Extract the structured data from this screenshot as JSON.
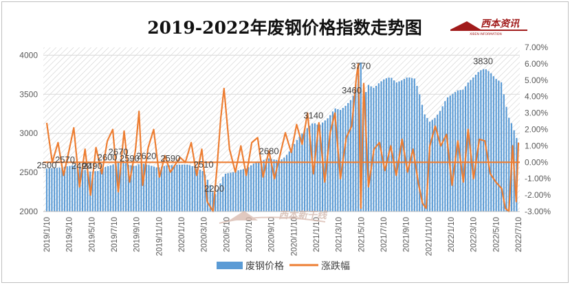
{
  "chart_data": {
    "type": "bar+line",
    "title": "2019-2022年废钢价格指数走势图",
    "logo": {
      "text": "西本资讯",
      "subtext": "XIBEN INFORMATION"
    },
    "watermark": "西本新干线",
    "y_left": {
      "ylim": [
        2000,
        4100
      ],
      "ticks": [
        2000,
        2500,
        3000,
        3500,
        4000
      ]
    },
    "y_right": {
      "ylim": [
        -3.0,
        7.0
      ],
      "ticks": [
        "-3.00%",
        "-2.00%",
        "-1.00%",
        "0.00%",
        "1.00%",
        "2.00%",
        "3.00%",
        "4.00%",
        "5.00%",
        "6.00%",
        "7.00%"
      ]
    },
    "x_ticks": [
      "2019/1/10",
      "2019/3/10",
      "2019/5/10",
      "2019/7/10",
      "2019/9/10",
      "2019/11/10",
      "2020/1/10",
      "2020/3/10",
      "2020/5/10",
      "2020/7/10",
      "2020/9/10",
      "2020/11/10",
      "2021/1/10",
      "2021/3/10",
      "2021/5/10",
      "2021/7/10",
      "2021/9/10",
      "2021/11/10",
      "2022/1/10",
      "2022/3/10",
      "2022/5/10",
      "2022/7/10"
    ],
    "x_range": [
      "2019-01-10",
      "2022-07-26"
    ],
    "series": [
      {
        "name": "废钢价格",
        "type": "bar",
        "color": "#5b9bd5",
        "points": [
          [
            "2019-01-10",
            2550
          ],
          [
            "2019-02-10",
            2560
          ],
          [
            "2019-03-10",
            2580
          ],
          [
            "2019-04-01",
            2600
          ],
          [
            "2019-04-20",
            2540
          ],
          [
            "2019-05-10",
            2510
          ],
          [
            "2019-06-01",
            2520
          ],
          [
            "2019-06-20",
            2570
          ],
          [
            "2019-07-10",
            2600
          ],
          [
            "2019-07-25",
            2640
          ],
          [
            "2019-08-01",
            2670
          ],
          [
            "2019-08-20",
            2600
          ],
          [
            "2019-09-10",
            2580
          ],
          [
            "2019-09-25",
            2620
          ],
          [
            "2019-10-20",
            2590
          ],
          [
            "2019-11-10",
            2560
          ],
          [
            "2019-12-05",
            2590
          ],
          [
            "2020-01-10",
            2600
          ],
          [
            "2020-02-01",
            2600
          ],
          [
            "2020-02-25",
            2560
          ],
          [
            "2020-03-15",
            2510
          ],
          [
            "2020-04-01",
            2350
          ],
          [
            "2020-04-13",
            2200
          ],
          [
            "2020-04-25",
            2300
          ],
          [
            "2020-05-10",
            2480
          ],
          [
            "2020-06-01",
            2500
          ],
          [
            "2020-06-20",
            2530
          ],
          [
            "2020-07-10",
            2550
          ],
          [
            "2020-08-01",
            2620
          ],
          [
            "2020-08-20",
            2650
          ],
          [
            "2020-09-10",
            2680
          ],
          [
            "2020-10-10",
            2650
          ],
          [
            "2020-10-25",
            2700
          ],
          [
            "2020-11-10",
            2800
          ],
          [
            "2020-12-01",
            2950
          ],
          [
            "2020-12-20",
            3050
          ],
          [
            "2021-01-10",
            3140
          ],
          [
            "2021-01-25",
            3100
          ],
          [
            "2021-02-20",
            3200
          ],
          [
            "2021-03-10",
            3320
          ],
          [
            "2021-03-25",
            3300
          ],
          [
            "2021-04-10",
            3360
          ],
          [
            "2021-04-28",
            3460
          ],
          [
            "2021-05-13",
            3770
          ],
          [
            "2021-05-18",
            4020
          ],
          [
            "2021-05-28",
            3450
          ],
          [
            "2021-06-10",
            3620
          ],
          [
            "2021-06-25",
            3580
          ],
          [
            "2021-07-10",
            3650
          ],
          [
            "2021-07-25",
            3700
          ],
          [
            "2021-08-10",
            3720
          ],
          [
            "2021-08-25",
            3650
          ],
          [
            "2021-09-10",
            3680
          ],
          [
            "2021-09-25",
            3720
          ],
          [
            "2021-10-15",
            3700
          ],
          [
            "2021-10-28",
            3500
          ],
          [
            "2021-11-10",
            3250
          ],
          [
            "2021-11-25",
            3150
          ],
          [
            "2021-12-10",
            3200
          ],
          [
            "2021-12-25",
            3300
          ],
          [
            "2022-01-10",
            3450
          ],
          [
            "2022-01-25",
            3500
          ],
          [
            "2022-02-10",
            3550
          ],
          [
            "2022-02-25",
            3560
          ],
          [
            "2022-03-10",
            3650
          ],
          [
            "2022-03-25",
            3720
          ],
          [
            "2022-04-10",
            3800
          ],
          [
            "2022-04-25",
            3830
          ],
          [
            "2022-05-10",
            3780
          ],
          [
            "2022-05-25",
            3700
          ],
          [
            "2022-06-10",
            3650
          ],
          [
            "2022-06-20",
            3400
          ],
          [
            "2022-06-30",
            3200
          ],
          [
            "2022-07-10",
            3100
          ],
          [
            "2022-07-20",
            2950
          ],
          [
            "2022-07-26",
            2900
          ]
        ]
      },
      {
        "name": "涨跌幅",
        "type": "line",
        "color": "#ed7d31",
        "points": [
          [
            "2019-01-10",
            2.4
          ],
          [
            "2019-01-25",
            0.0
          ],
          [
            "2019-02-10",
            1.2
          ],
          [
            "2019-02-25",
            -0.8
          ],
          [
            "2019-03-10",
            0.5
          ],
          [
            "2019-03-25",
            2.1
          ],
          [
            "2019-04-10",
            -1.5
          ],
          [
            "2019-04-25",
            0.8
          ],
          [
            "2019-05-10",
            -2.0
          ],
          [
            "2019-05-25",
            0.9
          ],
          [
            "2019-06-10",
            -0.7
          ],
          [
            "2019-06-25",
            1.3
          ],
          [
            "2019-07-10",
            2.0
          ],
          [
            "2019-07-25",
            -1.8
          ],
          [
            "2019-08-10",
            1.9
          ],
          [
            "2019-08-25",
            -1.2
          ],
          [
            "2019-09-10",
            0.7
          ],
          [
            "2019-09-20",
            3.1
          ],
          [
            "2019-09-30",
            -1.4
          ],
          [
            "2019-10-15",
            0.9
          ],
          [
            "2019-10-30",
            2.0
          ],
          [
            "2019-11-15",
            -0.9
          ],
          [
            "2019-11-30",
            0.4
          ],
          [
            "2019-12-15",
            -0.6
          ],
          [
            "2020-01-10",
            0.3
          ],
          [
            "2020-01-25",
            0.0
          ],
          [
            "2020-02-10",
            1.2
          ],
          [
            "2020-02-25",
            -0.8
          ],
          [
            "2020-03-10",
            0.8
          ],
          [
            "2020-03-25",
            -2.4
          ],
          [
            "2020-04-10",
            -3.0
          ],
          [
            "2020-04-20",
            -0.5
          ],
          [
            "2020-05-01",
            2.7
          ],
          [
            "2020-05-10",
            4.5
          ],
          [
            "2020-05-25",
            0.8
          ],
          [
            "2020-06-10",
            -0.6
          ],
          [
            "2020-06-25",
            1.0
          ],
          [
            "2020-07-10",
            -0.8
          ],
          [
            "2020-07-25",
            1.2
          ],
          [
            "2020-08-10",
            1.5
          ],
          [
            "2020-08-25",
            -0.9
          ],
          [
            "2020-09-10",
            0.7
          ],
          [
            "2020-09-25",
            -1.0
          ],
          [
            "2020-10-10",
            0.4
          ],
          [
            "2020-10-25",
            1.8
          ],
          [
            "2020-11-10",
            0.6
          ],
          [
            "2020-11-25",
            2.3
          ],
          [
            "2020-12-10",
            1.1
          ],
          [
            "2020-12-25",
            3.0
          ],
          [
            "2021-01-10",
            -0.7
          ],
          [
            "2021-01-25",
            2.4
          ],
          [
            "2021-02-10",
            -1.2
          ],
          [
            "2021-02-25",
            1.8
          ],
          [
            "2021-03-10",
            3.0
          ],
          [
            "2021-03-25",
            -1.0
          ],
          [
            "2021-04-10",
            1.5
          ],
          [
            "2021-04-25",
            2.2
          ],
          [
            "2021-05-08",
            5.2
          ],
          [
            "2021-05-13",
            6.0
          ],
          [
            "2021-05-20",
            -2.8
          ],
          [
            "2021-05-28",
            4.8
          ],
          [
            "2021-06-10",
            -1.5
          ],
          [
            "2021-06-25",
            0.8
          ],
          [
            "2021-07-10",
            1.2
          ],
          [
            "2021-07-25",
            -0.5
          ],
          [
            "2021-08-10",
            1.0
          ],
          [
            "2021-08-25",
            -0.8
          ],
          [
            "2021-09-10",
            1.4
          ],
          [
            "2021-09-25",
            -0.6
          ],
          [
            "2021-10-10",
            0.8
          ],
          [
            "2021-10-25",
            -1.3
          ],
          [
            "2021-11-05",
            -2.5
          ],
          [
            "2021-11-15",
            -2.8
          ],
          [
            "2021-11-25",
            1.0
          ],
          [
            "2021-12-10",
            2.2
          ],
          [
            "2021-12-25",
            1.0
          ],
          [
            "2022-01-10",
            1.7
          ],
          [
            "2022-01-25",
            -1.4
          ],
          [
            "2022-02-10",
            1.3
          ],
          [
            "2022-02-25",
            -1.2
          ],
          [
            "2022-03-10",
            2.0
          ],
          [
            "2022-03-25",
            -1.0
          ],
          [
            "2022-04-10",
            1.4
          ],
          [
            "2022-04-25",
            1.3
          ],
          [
            "2022-05-10",
            -0.7
          ],
          [
            "2022-05-25",
            -1.2
          ],
          [
            "2022-06-10",
            -1.6
          ],
          [
            "2022-06-20",
            -2.8
          ],
          [
            "2022-06-30",
            -3.0
          ],
          [
            "2022-07-10",
            1.0
          ],
          [
            "2022-07-20",
            -2.4
          ],
          [
            "2022-07-26",
            1.2
          ]
        ]
      }
    ],
    "annotations": [
      {
        "text": "2500",
        "x": "2019-01-10",
        "y": 2500
      },
      {
        "text": "2570",
        "x": "2019-03-01",
        "y": 2570
      },
      {
        "text": "2490",
        "x": "2019-04-15",
        "y": 2490
      },
      {
        "text": "2490",
        "x": "2019-05-15",
        "y": 2490
      },
      {
        "text": "2600",
        "x": "2019-06-25",
        "y": 2600
      },
      {
        "text": "2670",
        "x": "2019-07-25",
        "y": 2670
      },
      {
        "text": "2590",
        "x": "2019-08-25",
        "y": 2590
      },
      {
        "text": "2620",
        "x": "2019-10-10",
        "y": 2620
      },
      {
        "text": "2590",
        "x": "2019-12-15",
        "y": 2590
      },
      {
        "text": "2510",
        "x": "2020-03-15",
        "y": 2510
      },
      {
        "text": "2200",
        "x": "2020-04-13",
        "y": 2200
      },
      {
        "text": "2680",
        "x": "2020-09-10",
        "y": 2680
      },
      {
        "text": "3140",
        "x": "2021-01-10",
        "y": 3140
      },
      {
        "text": "3460",
        "x": "2021-04-25",
        "y": 3460
      },
      {
        "text": "3770",
        "x": "2021-05-20",
        "y": 3770
      },
      {
        "text": "3830",
        "x": "2022-04-20",
        "y": 3830
      }
    ]
  }
}
